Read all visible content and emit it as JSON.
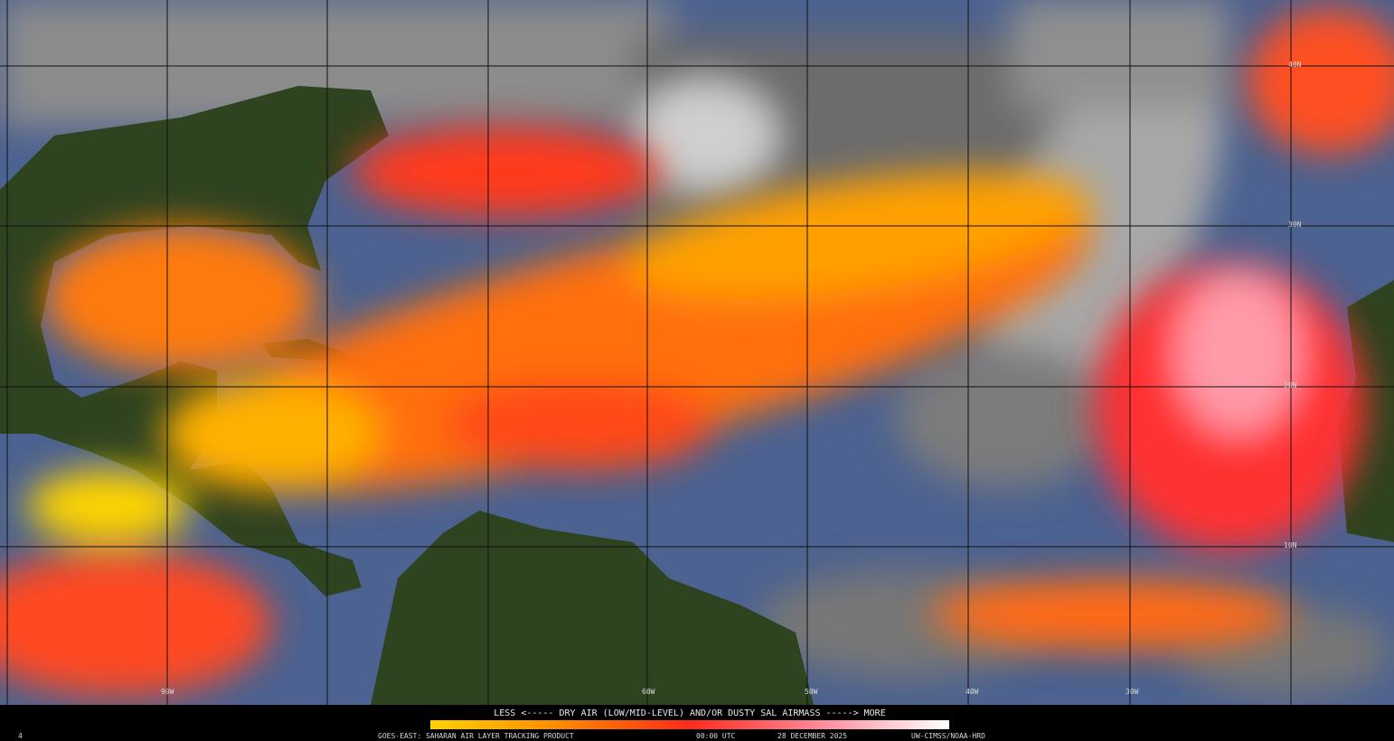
{
  "colorbar": {
    "caption": "LESS <----- DRY AIR (LOW/MID-LEVEL) AND/OR DUSTY SAL AIRMASS -----> MORE"
  },
  "footer": {
    "frame": "4",
    "product": "GOES-EAST: SAHARAN AIR LAYER TRACKING PRODUCT",
    "time": "00:00 UTC",
    "date": "28 DECEMBER 2025",
    "credit": "UW-CIMSS/NOAA-HRD"
  },
  "grid_labels": {
    "latitudes": [
      "40N",
      "30N",
      "20N",
      "10N"
    ],
    "longitudes": [
      "90W",
      "60W",
      "50W",
      "40W",
      "30W"
    ]
  }
}
